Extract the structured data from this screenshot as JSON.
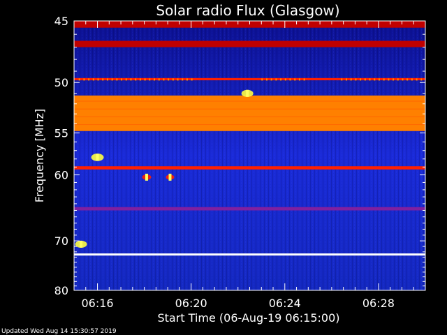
{
  "chart_data": {
    "type": "heatmap",
    "title": "Solar radio Flux (Glasgow)",
    "xlabel": "Start Time (06-Aug-19 06:15:00)",
    "ylabel": "Frequency [MHz]",
    "x_ticks": [
      "06:16",
      "06:20",
      "06:24",
      "06:28"
    ],
    "x_tick_minutes": [
      1,
      5,
      9,
      13
    ],
    "xlim_minutes": [
      0,
      15
    ],
    "y_ticks": [
      45,
      50,
      55,
      60,
      70,
      80
    ],
    "ylim": [
      45,
      80
    ],
    "y_scale": "reciprocal",
    "colormap": [
      "#0a0a6e",
      "#1020c8",
      "#1e3cff",
      "#8020a0",
      "#c00000",
      "#ff2000",
      "#ff8000",
      "#ffff40",
      "#ffffff"
    ],
    "bands": [
      {
        "freq_low": 45.0,
        "freq_high": 45.5,
        "intensity": 0.55
      },
      {
        "freq_low": 46.5,
        "freq_high": 47.0,
        "intensity": 0.45
      },
      {
        "freq_low": 49.6,
        "freq_high": 49.8,
        "intensity": 0.6
      },
      {
        "freq_low": 51.2,
        "freq_high": 54.8,
        "intensity": 0.72
      },
      {
        "freq_low": 58.9,
        "freq_high": 59.3,
        "intensity": 0.62
      },
      {
        "freq_low": 64.5,
        "freq_high": 65.0,
        "intensity": 0.42
      },
      {
        "freq_low": 72.3,
        "freq_high": 72.7,
        "intensity": 0.95
      }
    ],
    "bursts": [
      {
        "minute": 1.0,
        "freq": 57.8,
        "intensity": 0.9
      },
      {
        "minute": 7.4,
        "freq": 51.0,
        "intensity": 0.85
      },
      {
        "minute": 3.1,
        "freq": 60.3,
        "intensity": 0.65
      },
      {
        "minute": 4.1,
        "freq": 60.3,
        "intensity": 0.6
      },
      {
        "minute": 0.3,
        "freq": 70.6,
        "intensity": 0.85
      }
    ]
  },
  "footer": {
    "updated": "Updated Wed Aug 14 15:30:57 2019"
  }
}
